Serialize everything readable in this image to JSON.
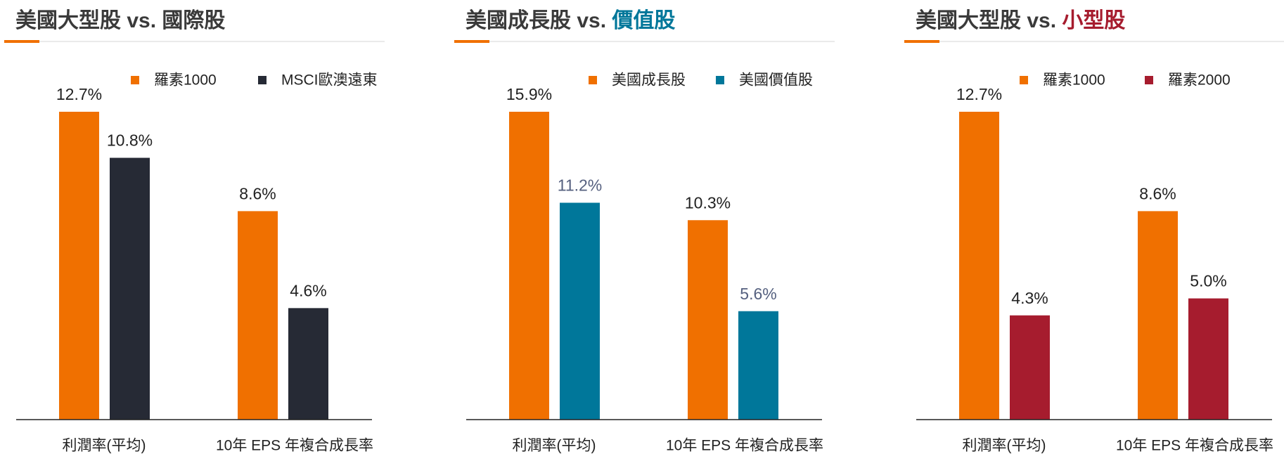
{
  "chart_data": [
    {
      "type": "bar",
      "title": "美國大型股 vs.",
      "title_highlight": "國際股",
      "title_highlight_color": "#3a3a3a",
      "categories": [
        "利潤率(平均)",
        "10年 EPS 年複合成長率"
      ],
      "series": [
        {
          "name": "羅素1000",
          "color": "#f07000",
          "label_color": "#222222",
          "values": [
            12.7,
            8.6
          ],
          "value_labels": [
            "12.7%",
            "8.6%"
          ]
        },
        {
          "name": "MSCI歐澳遠東",
          "color": "#262a35",
          "label_color": "#222222",
          "values": [
            10.8,
            4.6
          ],
          "value_labels": [
            "10.8%",
            "4.6%"
          ]
        }
      ]
    },
    {
      "type": "bar",
      "title": "美國成長股 vs.",
      "title_highlight": "價值股",
      "title_highlight_color": "#00779a",
      "categories": [
        "利潤率(平均)",
        "10年 EPS 年複合成長率"
      ],
      "series": [
        {
          "name": "美國成長股",
          "color": "#f07000",
          "label_color": "#222222",
          "values": [
            15.9,
            10.3
          ],
          "value_labels": [
            "15.9%",
            "10.3%"
          ]
        },
        {
          "name": "美國價值股",
          "color": "#00779a",
          "label_color": "#55607f",
          "values": [
            11.2,
            5.6
          ],
          "value_labels": [
            "11.2%",
            "5.6%"
          ]
        }
      ]
    },
    {
      "type": "bar",
      "title": "美國大型股 vs.",
      "title_highlight": "小型股",
      "title_highlight_color": "#a61c2e",
      "categories": [
        "利潤率(平均)",
        "10年 EPS 年複合成長率"
      ],
      "series": [
        {
          "name": "羅素1000",
          "color": "#f07000",
          "label_color": "#222222",
          "values": [
            12.7,
            8.6
          ],
          "value_labels": [
            "12.7%",
            "8.6%"
          ]
        },
        {
          "name": "羅素2000",
          "color": "#a61c2e",
          "label_color": "#222222",
          "values": [
            4.3,
            5.0
          ],
          "value_labels": [
            "4.3%",
            "5.0%"
          ]
        }
      ]
    }
  ]
}
